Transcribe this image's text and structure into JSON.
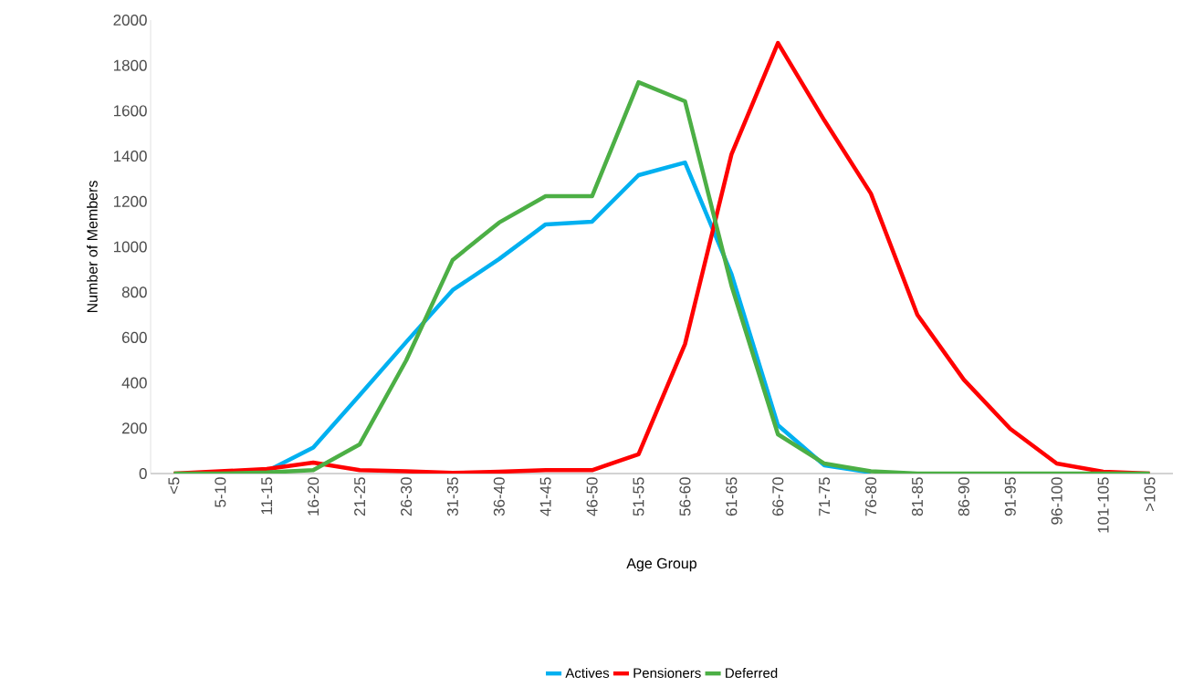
{
  "chart_data": {
    "type": "line",
    "xlabel": "Age Group",
    "ylabel": "Number of Members",
    "categories": [
      "<5",
      "5-10",
      "11-15",
      "16-20",
      "21-25",
      "26-30",
      "31-35",
      "36-40",
      "41-45",
      "46-50",
      "51-55",
      "56-60",
      "61-65",
      "66-70",
      "71-75",
      "76-80",
      "81-85",
      "86-90",
      "91-95",
      "96-100",
      "101-105",
      ">105"
    ],
    "series": [
      {
        "name": "Actives",
        "color": "#00b0f0",
        "values": [
          null,
          null,
          10,
          115,
          346,
          580,
          809,
          946,
          1099,
          1111,
          1316,
          1372,
          880,
          213,
          36,
          5,
          null,
          null,
          null,
          null,
          null,
          null
        ]
      },
      {
        "name": "Pensioners",
        "color": "#ff0000",
        "values": [
          0,
          10,
          20,
          48,
          15,
          10,
          3,
          8,
          15,
          15,
          85,
          571,
          1408,
          1899,
          1557,
          1235,
          700,
          414,
          197,
          44,
          8,
          0
        ]
      },
      {
        "name": "Deferred",
        "color": "#4caf45",
        "values": [
          0,
          0,
          5,
          15,
          129,
          499,
          942,
          1107,
          1223,
          1223,
          1726,
          1642,
          829,
          173,
          44,
          10,
          0,
          0,
          0,
          0,
          0,
          0
        ]
      }
    ],
    "ylim": [
      0,
      2000
    ],
    "yticks": [
      0,
      200,
      400,
      600,
      800,
      1000,
      1200,
      1400,
      1600,
      1800,
      2000
    ],
    "grid": false,
    "legend": "bottom",
    "marker": "none",
    "line_style": "solid"
  }
}
